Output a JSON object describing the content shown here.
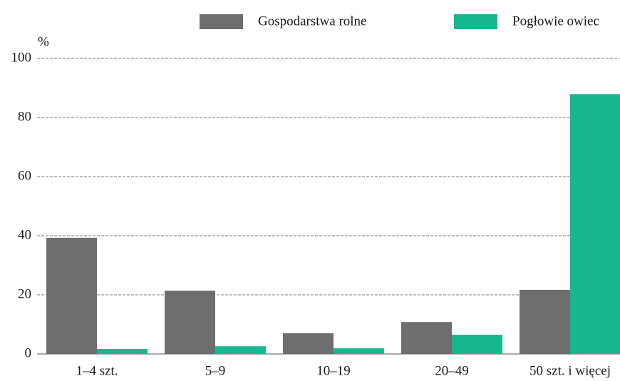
{
  "chart_data": {
    "type": "bar",
    "y_label": "%",
    "categories": [
      "1–4 szt.",
      "5–9",
      "10–19",
      "20–49",
      "50 szt. i więcej"
    ],
    "series": [
      {
        "name": "Gospodarstwa rolne",
        "color": "#6d6e70",
        "values": [
          39.3,
          21.4,
          7.0,
          10.8,
          21.7
        ]
      },
      {
        "name": "Pogłowie owiec",
        "color": "#17b890",
        "values": [
          1.7,
          2.6,
          1.9,
          6.5,
          87.9
        ]
      }
    ],
    "ylim": [
      0,
      100
    ],
    "yticks": [
      0,
      20,
      40,
      60,
      80,
      100
    ],
    "grid": true,
    "legend": "top"
  }
}
